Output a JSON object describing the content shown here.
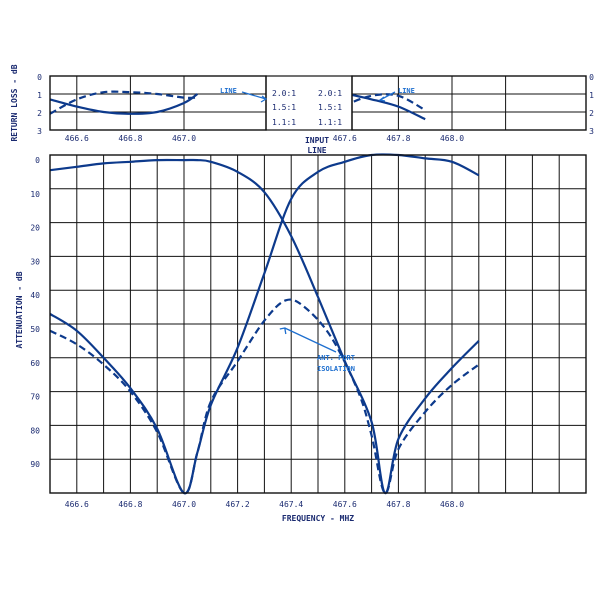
{
  "chart_data": [
    {
      "id": "vswr",
      "type": "line",
      "xlabel": "FREQUENCY - MHZ",
      "ylabel": "RETURN LOSS - dB",
      "y_ticks": [
        "0",
        "1",
        "2",
        "3"
      ],
      "right_ticks": [
        "0",
        "1",
        "2",
        "3"
      ],
      "x_ticks_left": [
        {
          "value": 466.6,
          "label": "466.6"
        },
        {
          "value": 466.8,
          "label": "466.8"
        },
        {
          "value": 467.0,
          "label": "467.0"
        }
      ],
      "x_ticks_right": [
        {
          "value": 467.6,
          "label": "467.6"
        },
        {
          "value": 467.8,
          "label": "467.8"
        },
        {
          "value": 468.0,
          "label": "468.0"
        }
      ],
      "vswr_labels": [
        [
          "2.0:1",
          "2.0:1"
        ],
        [
          "1.5:1",
          "1.5:1"
        ],
        [
          "1.1:1",
          "1.1:1"
        ]
      ],
      "center_label": [
        "INPUT",
        "LINE"
      ],
      "annotations": [
        "LINE",
        "LINE"
      ],
      "series": [
        {
          "style": "solid",
          "x": [
            466.5,
            466.6,
            466.7,
            466.8,
            466.9,
            467.0,
            467.05
          ],
          "y": [
            1.7,
            1.3,
            1.0,
            0.9,
            1.0,
            1.5,
            2.0
          ]
        },
        {
          "style": "dashed",
          "x": [
            466.5,
            466.6,
            466.7,
            466.8,
            466.9,
            467.0,
            467.05
          ],
          "y": [
            0.9,
            1.7,
            2.1,
            2.1,
            2.0,
            1.8,
            1.8
          ]
        },
        {
          "style": "solid",
          "x": [
            467.55,
            467.6,
            467.7,
            467.8,
            467.9
          ],
          "y": [
            1.8,
            2.0,
            1.7,
            1.3,
            0.6
          ]
        },
        {
          "style": "dashed",
          "x": [
            467.55,
            467.6,
            467.7,
            467.8,
            467.9
          ],
          "y": [
            0.3,
            1.3,
            1.9,
            1.9,
            1.1
          ]
        }
      ]
    },
    {
      "id": "attenuation",
      "type": "line",
      "xlabel": "FREQUENCY - MHZ",
      "ylabel": "ATTENUATION - dB",
      "xlim": [
        466.5,
        468.5
      ],
      "ylim": [
        0,
        100
      ],
      "y_ticks": [
        {
          "value": 0,
          "label": "0"
        },
        {
          "value": 10,
          "label": "10"
        },
        {
          "value": 20,
          "label": "20"
        },
        {
          "value": 30,
          "label": "30"
        },
        {
          "value": 40,
          "label": "40"
        },
        {
          "value": 50,
          "label": "50"
        },
        {
          "value": 60,
          "label": "60"
        },
        {
          "value": 70,
          "label": "70"
        },
        {
          "value": 80,
          "label": "80"
        },
        {
          "value": 90,
          "label": "90"
        }
      ],
      "x_ticks": [
        {
          "value": 466.6,
          "label": "466.6"
        },
        {
          "value": 466.8,
          "label": "466.8"
        },
        {
          "value": 467.0,
          "label": "467.0"
        },
        {
          "value": 467.2,
          "label": "467.2"
        },
        {
          "value": 467.4,
          "label": "467.4"
        },
        {
          "value": 467.6,
          "label": "467.6"
        },
        {
          "value": 467.8,
          "label": "467.8"
        },
        {
          "value": 468.0,
          "label": "468.0"
        }
      ],
      "annotation": [
        "ANT. PORT",
        "ISOLATION"
      ],
      "annotation_point": {
        "x": 467.38,
        "y": 50
      },
      "series": [
        {
          "style": "solid",
          "x": [
            466.5,
            466.6,
            466.7,
            466.8,
            466.9,
            467.0,
            467.05,
            467.1,
            467.2,
            467.3,
            467.4,
            467.5,
            467.6,
            467.7,
            467.75,
            467.8,
            467.9,
            468.0,
            468.1
          ],
          "y": [
            4.5,
            3.5,
            2.5,
            2,
            1.5,
            1.5,
            1.5,
            2,
            5,
            11,
            24,
            42,
            61,
            79,
            100,
            84,
            72,
            63,
            55
          ]
        },
        {
          "style": "solid",
          "x": [
            466.5,
            466.6,
            466.7,
            466.8,
            466.9,
            467.0,
            467.05,
            467.1,
            467.2,
            467.3,
            467.4,
            467.5,
            467.6,
            467.7,
            467.8,
            467.9,
            468.0,
            468.1
          ],
          "y": [
            47,
            52,
            60,
            69,
            81,
            100,
            88,
            74,
            57,
            35,
            13,
            5,
            2,
            0,
            0,
            1,
            2,
            6
          ]
        },
        {
          "style": "dashed",
          "x": [
            466.5,
            466.6,
            466.7,
            466.8,
            466.9,
            467.0,
            467.05,
            467.1,
            467.2,
            467.3,
            467.38,
            467.45,
            467.55,
            467.65,
            467.7,
            467.75,
            467.8,
            467.9,
            468.0,
            468.1
          ],
          "y": [
            52,
            56,
            62,
            70,
            82,
            100,
            88,
            73,
            61,
            49,
            43,
            45,
            54,
            70,
            83,
            100,
            87,
            76,
            68,
            62
          ]
        }
      ]
    }
  ]
}
